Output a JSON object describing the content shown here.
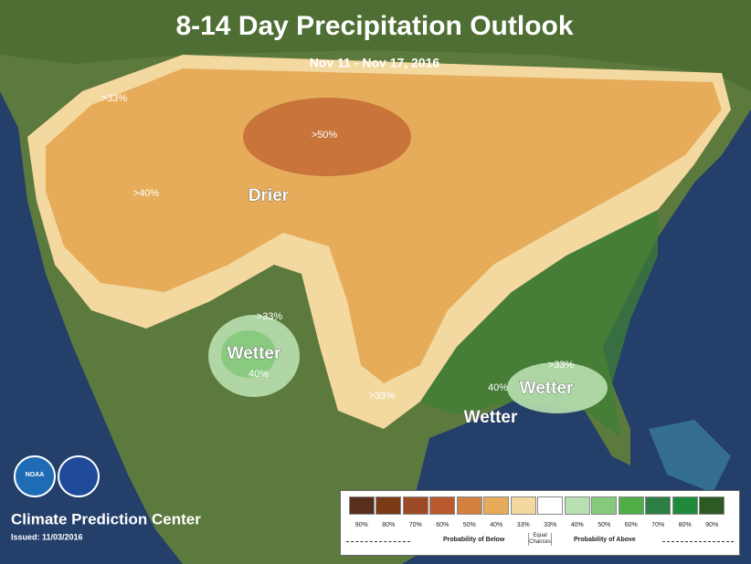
{
  "header": {
    "title": "8-14 Day Precipitation Outlook",
    "subtitle": "Nov 11 - Nov 17, 2016"
  },
  "map_labels": [
    {
      "text": ">33%",
      "style": "small"
    },
    {
      "text": ">50%",
      "style": "small"
    },
    {
      "text": ">40%",
      "style": "small"
    },
    {
      "text": "Drier",
      "style": "big"
    },
    {
      "text": ">33%",
      "style": "small"
    },
    {
      "text": "Wetter",
      "style": "big"
    },
    {
      "text": "40%",
      "style": "small"
    },
    {
      "text": ">33%",
      "style": "small"
    },
    {
      "text": ">33%",
      "style": "small"
    },
    {
      "text": "40%",
      "style": "small"
    },
    {
      "text": "Wetter",
      "style": "big"
    },
    {
      "text": "Wetter",
      "style": "big"
    }
  ],
  "logos": {
    "noaa": "NOAA"
  },
  "footer": {
    "organization": "Climate Prediction Center",
    "issued": "Issued: 11/03/2016"
  },
  "legend": {
    "swatches": [
      {
        "label": "90%",
        "color": "#5a2e1c"
      },
      {
        "label": "80%",
        "color": "#7a3a16"
      },
      {
        "label": "70%",
        "color": "#9c4a24"
      },
      {
        "label": "60%",
        "color": "#b85a2e"
      },
      {
        "label": "50%",
        "color": "#d4803e"
      },
      {
        "label": "40%",
        "color": "#e6ac5a"
      },
      {
        "label": "33%",
        "color": "#f3d9a0"
      },
      {
        "label": "33%",
        "color": "#ffffff"
      },
      {
        "label": "40%",
        "color": "#b9e0b0"
      },
      {
        "label": "50%",
        "color": "#86c97c"
      },
      {
        "label": "60%",
        "color": "#4fae45"
      },
      {
        "label": "70%",
        "color": "#2e7f46"
      },
      {
        "label": "80%",
        "color": "#1f8a3a"
      },
      {
        "label": "90%",
        "color": "#2c5a22"
      }
    ],
    "below_title": "Probability of Below",
    "equal_title": "Equal Chances",
    "above_title": "Probability of Above"
  }
}
